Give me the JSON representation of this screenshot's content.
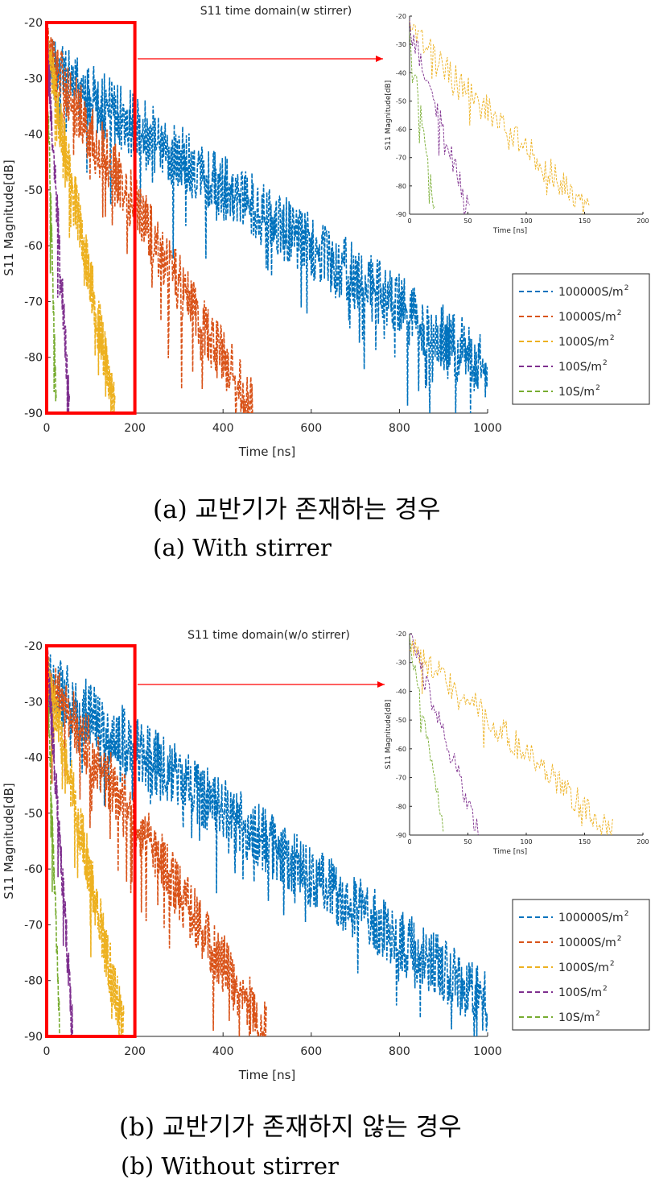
{
  "figures": [
    {
      "caption_ko": "(a) 교반기가 존재하는 경우",
      "caption_en": "(a) With stirrer"
    },
    {
      "caption_ko": "(b) 교반기가 존재하지 않는 경우",
      "caption_en": "(b) Without stirrer"
    }
  ],
  "chart_data": [
    {
      "type": "line",
      "title": "S11 time domain(w stirrer)",
      "xlabel": "Time [ns]",
      "ylabel": "S11 Magnitude[dB]",
      "xlim": [
        0,
        1000
      ],
      "ylim": [
        -90,
        -20
      ],
      "xticks": [
        0,
        200,
        400,
        600,
        800,
        1000
      ],
      "yticks": [
        -20,
        -30,
        -40,
        -50,
        -60,
        -70,
        -80,
        -90
      ],
      "grid": false,
      "line_style": "dashed",
      "legend_position": "right",
      "zoom_region": {
        "x": [
          0,
          200
        ],
        "y": [
          -90,
          -20
        ],
        "highlight_color": "#ff0000"
      },
      "series": [
        {
          "name": "100000S/m",
          "color": "#0072bd",
          "start_db": -26,
          "end_time": 1000,
          "end_db": -80,
          "spread_db": 12
        },
        {
          "name": "10000S/m",
          "color": "#d95319",
          "start_db": -24,
          "end_time": 470,
          "end_db": -88,
          "spread_db": 11
        },
        {
          "name": "1000S/m",
          "color": "#edb120",
          "start_db": -23,
          "end_time": 155,
          "end_db": -88,
          "spread_db": 10
        },
        {
          "name": "100S/m",
          "color": "#7e2f8e",
          "start_db": -22,
          "end_time": 52,
          "end_db": -89,
          "spread_db": 8
        },
        {
          "name": "10S/m",
          "color": "#77ac30",
          "start_db": -24,
          "end_time": 22,
          "end_db": -89,
          "spread_db": 6
        }
      ],
      "inset": {
        "xlabel": "Time [ns]",
        "ylabel": "S11 Magnitude[dB]",
        "xlim": [
          0,
          200
        ],
        "ylim": [
          -90,
          -20
        ],
        "xticks": [
          0,
          50,
          100,
          150,
          200
        ],
        "yticks": [
          -20,
          -30,
          -40,
          -50,
          -60,
          -70,
          -80,
          -90
        ],
        "series_shown": [
          "1000S/m",
          "100S/m",
          "10S/m"
        ]
      }
    },
    {
      "type": "line",
      "title": "S11 time domain(w/o stirrer)",
      "xlabel": "Time [ns]",
      "ylabel": "S11 Magnitude[dB]",
      "xlim": [
        0,
        1000
      ],
      "ylim": [
        -90,
        -20
      ],
      "xticks": [
        0,
        200,
        400,
        600,
        800,
        1000
      ],
      "yticks": [
        -20,
        -30,
        -40,
        -50,
        -60,
        -70,
        -80,
        -90
      ],
      "grid": false,
      "line_style": "dashed",
      "legend_position": "right",
      "zoom_region": {
        "x": [
          0,
          200
        ],
        "y": [
          -90,
          -20
        ],
        "highlight_color": "#ff0000"
      },
      "series": [
        {
          "name": "100000S/m",
          "color": "#0072bd",
          "start_db": -25,
          "end_time": 1000,
          "end_db": -82,
          "spread_db": 12
        },
        {
          "name": "10000S/m",
          "color": "#d95319",
          "start_db": -24,
          "end_time": 500,
          "end_db": -88,
          "spread_db": 11
        },
        {
          "name": "1000S/m",
          "color": "#edb120",
          "start_db": -23,
          "end_time": 175,
          "end_db": -88,
          "spread_db": 10
        },
        {
          "name": "100S/m",
          "color": "#7e2f8e",
          "start_db": -20,
          "end_time": 60,
          "end_db": -89,
          "spread_db": 8
        },
        {
          "name": "10S/m",
          "color": "#77ac30",
          "start_db": -22,
          "end_time": 30,
          "end_db": -89,
          "spread_db": 6
        }
      ],
      "inset": {
        "xlabel": "Time [ns]",
        "ylabel": "S11 Magnitude[dB]",
        "xlim": [
          0,
          200
        ],
        "ylim": [
          -90,
          -20
        ],
        "xticks": [
          0,
          50,
          100,
          150,
          200
        ],
        "yticks": [
          -20,
          -30,
          -40,
          -50,
          -60,
          -70,
          -80,
          -90
        ],
        "series_shown": [
          "1000S/m",
          "100S/m",
          "10S/m"
        ]
      }
    }
  ]
}
